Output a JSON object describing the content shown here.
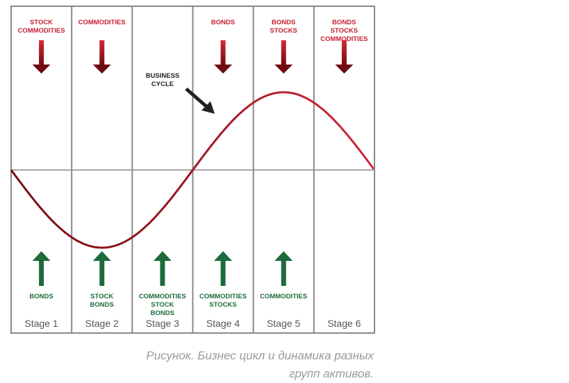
{
  "diagram": {
    "stages": [
      {
        "label": "Stage 1",
        "down": [
          "STOCK",
          "COMMODITIES"
        ],
        "up": [
          "BONDS"
        ]
      },
      {
        "label": "Stage 2",
        "down": [
          "COMMODITIES"
        ],
        "up": [
          "STOCK",
          "BONDS"
        ]
      },
      {
        "label": "Stage 3",
        "down": [],
        "up": [
          "COMMODITIES",
          "STOCK",
          "BONDS"
        ]
      },
      {
        "label": "Stage 4",
        "down": [
          "BONDS"
        ],
        "up": [
          "COMMODITIES",
          "STOCKS"
        ]
      },
      {
        "label": "Stage 5",
        "down": [
          "BONDS",
          "STOCKS"
        ],
        "up": [
          "COMMODITIES"
        ]
      },
      {
        "label": "Stage 6",
        "down": [
          "BONDS",
          "STOCKS",
          "COMMODITIES"
        ],
        "up": []
      }
    ],
    "curve_label": [
      "BUSINESS",
      "CYCLE"
    ],
    "colors": {
      "down": "#c41e2f",
      "up": "#1d6b3b",
      "curve": "#c41e2f",
      "grid": "#888888"
    }
  },
  "caption": [
    "Рисунок. Бизнес цикл и динамика разных",
    "групп активов."
  ]
}
